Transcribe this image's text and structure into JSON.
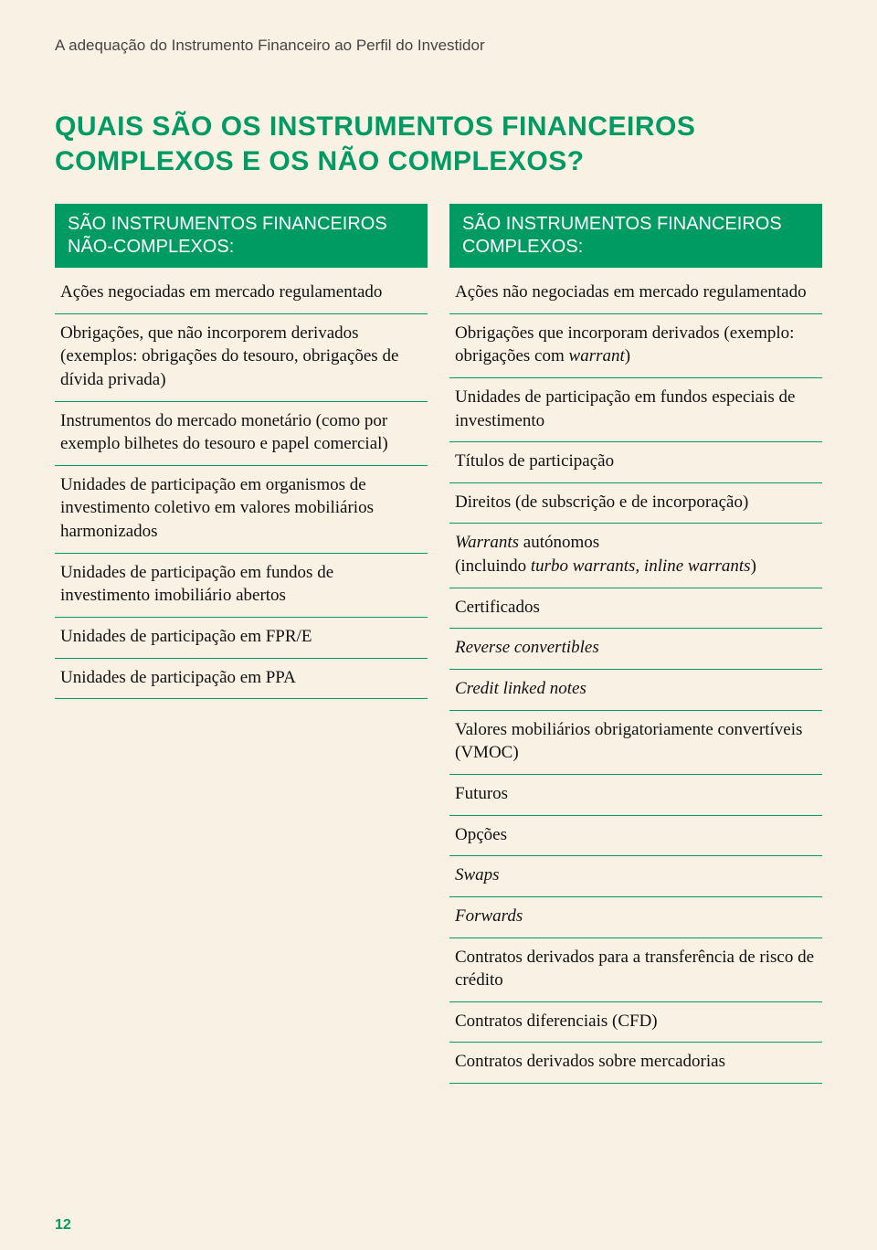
{
  "colors": {
    "accent": "#009a63",
    "page_bg": "#f8f1e4",
    "text": "#111111",
    "running_head": "#444444"
  },
  "typography": {
    "title_font": "Segoe UI, Arial, sans-serif",
    "body_font": "Georgia, Times New Roman, serif",
    "title_size_pt": 22,
    "body_size_pt": 14,
    "header_size_pt": 15
  },
  "running_head": "A adequação do Instrumento Financeiro ao Perfil do Investidor",
  "title": "QUAIS SÃO OS INSTRUMENTOS FINANCEIROS COMPLEXOS E OS NÃO COMPLEXOS?",
  "page_number": "12",
  "table": {
    "type": "two-column-list",
    "rule_color": "#009a63",
    "left": {
      "header": "SÃO INSTRUMENTOS FINANCEIROS NÃO-COMPLEXOS:",
      "items": [
        "Ações negociadas em mercado regulamentado",
        "Obrigações, que não incorporem derivados (exemplos: obrigações do tesouro, obrigações de dívida privada)",
        "Instrumentos do mercado monetário (como por exemplo bilhetes do tesouro e papel comercial)",
        "Unidades de participação em organismos de investimento coletivo em valores mobiliários harmonizados",
        "Unidades de participação em fundos de investimento imobiliário abertos",
        "Unidades de participação em FPR/E",
        "Unidades de participação em PPA"
      ]
    },
    "right": {
      "header": "SÃO INSTRUMENTOS FINANCEIROS COMPLEXOS:",
      "items": [
        "Ações não negociadas em mercado regulamentado",
        "Obrigações que incorporam derivados (exemplo: obrigações com warrant)",
        "Unidades de participação em fundos especiais de investimento",
        "Títulos de participação",
        "Direitos (de subscrição e de incorporação)",
        "Warrants autónomos (incluindo turbo warrants, inline warrants)",
        "Certificados",
        "Reverse convertibles",
        "Credit linked notes",
        "Valores mobiliários obrigatoriamente convertíveis (VMOC)",
        "Futuros",
        "Opções",
        "Swaps",
        "Forwards",
        "Contratos derivados para a transferência de risco de crédito",
        "Contratos diferenciais (CFD)",
        "Contratos derivados sobre mercadorias"
      ],
      "italic_indices": [
        7,
        8,
        12,
        13
      ]
    }
  }
}
